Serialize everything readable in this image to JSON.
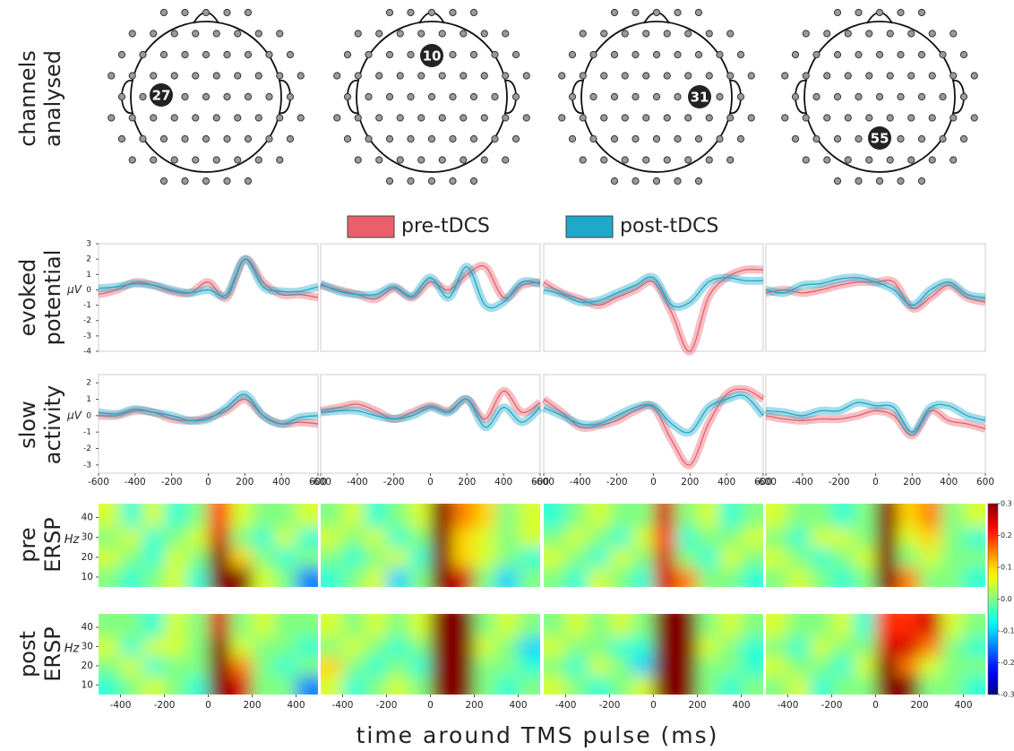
{
  "row_labels": [
    [
      "channels",
      "analysed"
    ],
    [
      "evoked",
      "potential"
    ],
    [
      "slow",
      "activity"
    ],
    [
      "pre",
      "ERSP"
    ],
    [
      "post",
      "ERSP"
    ]
  ],
  "channels": [
    "27",
    "10",
    "31",
    "55"
  ],
  "x_label": "time around TMS pulse (ms)",
  "colorbar": {
    "clim": [
      -0.3,
      0.3
    ],
    "ticks": [
      0.3,
      0.2,
      0.1,
      {
        "value": 0,
        "label": "0.0"
      },
      -0.1,
      -0.2,
      -0.3
    ]
  },
  "chart_data": [
    {
      "type": "line",
      "x": [
        -600,
        -500,
        -400,
        -300,
        -200,
        -100,
        0,
        100,
        200,
        300,
        400,
        500,
        600
      ],
      "xlim": [
        -600,
        600
      ],
      "ylim": [
        -4,
        3
      ],
      "yticks": [
        -4,
        -3,
        -2,
        -1,
        0,
        1,
        2,
        3
      ],
      "y_label": "μV",
      "series": [
        {
          "name": "pre-tDCS",
          "color": "#e95f6c",
          "values": [
            -0.3,
            0,
            0.5,
            0.3,
            -0.1,
            -0.2,
            0.5,
            -0.5,
            2,
            0.5,
            -0.3,
            -0.3,
            -0.5
          ]
        },
        {
          "name": "post-tDCS",
          "color": "#1fa8c9",
          "values": [
            0.1,
            0.2,
            0.4,
            0.3,
            0,
            -0.2,
            0,
            -0.3,
            2,
            0.2,
            -0.1,
            -0.1,
            0.2
          ]
        }
      ]
    },
    {
      "type": "line",
      "x": [
        -600,
        -500,
        -400,
        -300,
        -200,
        -100,
        0,
        100,
        200,
        300,
        400,
        500,
        600
      ],
      "xlim": [
        -600,
        600
      ],
      "ylim": [
        -4,
        3
      ],
      "series": [
        {
          "color": "#e95f6c",
          "values": [
            0.3,
            0,
            -0.3,
            -0.6,
            0.1,
            -0.5,
            0.5,
            0,
            1,
            1.5,
            -0.5,
            0.3,
            0.5
          ]
        },
        {
          "color": "#1fa8c9",
          "values": [
            0.4,
            -0.1,
            -0.3,
            -0.3,
            0.2,
            -0.4,
            0.8,
            -0.5,
            1.5,
            -1,
            -0.8,
            0.5,
            0.4
          ]
        }
      ]
    },
    {
      "type": "line",
      "x": [
        -600,
        -500,
        -400,
        -300,
        -200,
        -100,
        0,
        100,
        200,
        300,
        400,
        500,
        600
      ],
      "xlim": [
        -600,
        600
      ],
      "ylim": [
        -4,
        3
      ],
      "series": [
        {
          "color": "#e95f6c",
          "values": [
            0.5,
            -0.2,
            -0.6,
            -1,
            -0.5,
            0,
            0.5,
            -1.5,
            -4,
            -0.5,
            0.8,
            1.3,
            1.3
          ]
        },
        {
          "color": "#1fa8c9",
          "values": [
            0,
            -0.3,
            -0.8,
            -0.7,
            -0.2,
            0.3,
            0.8,
            -1,
            -0.8,
            0.5,
            0.8,
            0.6,
            0.6
          ]
        }
      ]
    },
    {
      "type": "line",
      "x": [
        -600,
        -500,
        -400,
        -300,
        -200,
        -100,
        0,
        100,
        200,
        300,
        400,
        500,
        600
      ],
      "xlim": [
        -600,
        600
      ],
      "ylim": [
        -4,
        3
      ],
      "series": [
        {
          "color": "#e95f6c",
          "values": [
            -0.2,
            0,
            -0.2,
            0,
            0.3,
            0.5,
            0.5,
            0.5,
            -1.2,
            -0.5,
            0.3,
            -0.5,
            -0.8
          ]
        },
        {
          "color": "#1fa8c9",
          "values": [
            0,
            -0.2,
            0.3,
            0.4,
            0.7,
            0.8,
            0.5,
            0,
            -1,
            0,
            0.5,
            -0.3,
            -0.5
          ]
        }
      ]
    },
    {
      "type": "line",
      "x": [
        -600,
        -500,
        -400,
        -300,
        -200,
        -100,
        0,
        100,
        200,
        300,
        400,
        500,
        600
      ],
      "xlim": [
        -600,
        600
      ],
      "ylim": [
        -3.5,
        2.5
      ],
      "yticks": [
        -3,
        -2,
        -1,
        0,
        1,
        2
      ],
      "y_label": "μV",
      "xticks": [
        -600,
        -400,
        -200,
        0,
        200,
        400,
        600
      ],
      "series": [
        {
          "color": "#e95f6c",
          "values": [
            0,
            0,
            0.3,
            0.2,
            -0.2,
            -0.3,
            -0.1,
            0.3,
            1,
            0,
            -0.5,
            -0.4,
            -0.5
          ]
        },
        {
          "color": "#1fa8c9",
          "values": [
            0.2,
            0.1,
            0.4,
            0.2,
            0,
            -0.3,
            -0.2,
            0.5,
            1.3,
            0,
            -0.5,
            -0.1,
            0
          ]
        }
      ]
    },
    {
      "type": "line",
      "x": [
        -600,
        -500,
        -400,
        -300,
        -200,
        -100,
        0,
        100,
        200,
        300,
        400,
        500,
        600
      ],
      "xlim": [
        -600,
        600
      ],
      "ylim": [
        -3.5,
        2.5
      ],
      "xticks": [
        -600,
        -400,
        -200,
        0,
        200,
        400,
        600
      ],
      "series": [
        {
          "color": "#e95f6c",
          "values": [
            0.3,
            0.5,
            0.7,
            0.3,
            -0.2,
            0.2,
            0.6,
            0.3,
            1,
            -0.2,
            1.5,
            0.2,
            0.8
          ]
        },
        {
          "color": "#1fa8c9",
          "values": [
            0.2,
            0.3,
            0.3,
            0,
            -0.2,
            0,
            0.5,
            0.2,
            1,
            -0.7,
            0.5,
            -0.4,
            0.5
          ]
        }
      ]
    },
    {
      "type": "line",
      "x": [
        -600,
        -500,
        -400,
        -300,
        -200,
        -100,
        0,
        100,
        200,
        300,
        400,
        500,
        600
      ],
      "xlim": [
        -600,
        600
      ],
      "ylim": [
        -3.5,
        2.5
      ],
      "xticks": [
        -600,
        -400,
        -200,
        0,
        200,
        400,
        600
      ],
      "series": [
        {
          "color": "#e95f6c",
          "values": [
            1,
            0.2,
            -0.7,
            -0.6,
            -0.3,
            0.3,
            0.5,
            -1.5,
            -3,
            -0.5,
            1.3,
            1.6,
            1
          ]
        },
        {
          "color": "#1fa8c9",
          "values": [
            0.5,
            0,
            -0.5,
            -0.5,
            0,
            0.5,
            0.6,
            -0.5,
            -1,
            0.5,
            1,
            1.2,
            0
          ]
        }
      ]
    },
    {
      "type": "line",
      "x": [
        -600,
        -500,
        -400,
        -300,
        -200,
        -100,
        0,
        100,
        200,
        300,
        400,
        500,
        600
      ],
      "xlim": [
        -600,
        600
      ],
      "ylim": [
        -3.5,
        2.5
      ],
      "xticks": [
        -600,
        -400,
        -200,
        0,
        200,
        400,
        600
      ],
      "series": [
        {
          "color": "#e95f6c",
          "values": [
            0,
            -0.2,
            -0.3,
            -0.2,
            -0.2,
            0,
            0.3,
            0,
            -1.2,
            0.3,
            -0.3,
            -0.5,
            -0.8
          ]
        },
        {
          "color": "#1fa8c9",
          "values": [
            0.3,
            0.2,
            0,
            0.3,
            0.3,
            0.8,
            0.6,
            0.5,
            -1,
            0.5,
            0.6,
            0,
            -0.3
          ]
        }
      ]
    },
    {
      "type": "heatmap",
      "x_bins": [
        -500,
        -400,
        -300,
        -200,
        -100,
        0,
        100,
        200,
        300,
        400,
        500
      ],
      "y_bins": [
        5,
        15,
        25,
        35,
        47
      ],
      "xlim": [
        -500,
        500
      ],
      "ylim": [
        5,
        47
      ],
      "yticks": [
        10,
        20,
        30,
        40
      ],
      "y_label": "Hz",
      "values": [
        [
          0,
          -0.05,
          0,
          0.05,
          -0.05,
          0.3,
          0.3,
          0.05,
          0,
          -0.15
        ],
        [
          0.05,
          0,
          -0.05,
          0.05,
          0,
          0.3,
          0.1,
          0,
          -0.05,
          0
        ],
        [
          0,
          0.05,
          -0.05,
          0,
          0.05,
          0.25,
          0,
          -0.05,
          0.05,
          -0.05
        ],
        [
          0.05,
          -0.05,
          0.05,
          -0.05,
          0,
          0.2,
          0.05,
          0,
          0,
          0.05
        ]
      ]
    },
    {
      "type": "heatmap",
      "x_bins": [
        -500,
        -400,
        -300,
        -200,
        -100,
        0,
        100,
        200,
        300,
        400,
        500
      ],
      "y_bins": [
        5,
        15,
        25,
        35,
        47
      ],
      "xlim": [
        -500,
        500
      ],
      "ylim": [
        5,
        47
      ],
      "values": [
        [
          -0.05,
          0,
          0.05,
          -0.1,
          0,
          0.3,
          0.25,
          0,
          -0.1,
          0
        ],
        [
          0,
          -0.05,
          0,
          0.05,
          -0.05,
          0.3,
          0.1,
          0.05,
          0,
          -0.05
        ],
        [
          0.05,
          0,
          0.05,
          -0.05,
          0,
          0.3,
          0.1,
          0.05,
          0,
          0.05
        ],
        [
          0,
          0.05,
          -0.05,
          0,
          0.05,
          0.3,
          0.15,
          0.1,
          0,
          0.05
        ]
      ]
    },
    {
      "type": "heatmap",
      "x_bins": [
        -500,
        -400,
        -300,
        -200,
        -100,
        0,
        100,
        200,
        300,
        400,
        500
      ],
      "y_bins": [
        5,
        15,
        25,
        35,
        47
      ],
      "xlim": [
        -500,
        500
      ],
      "ylim": [
        5,
        47
      ],
      "values": [
        [
          0,
          -0.05,
          0.05,
          0,
          -0.05,
          0.25,
          0.15,
          0,
          0,
          -0.05
        ],
        [
          0.05,
          0,
          -0.05,
          0.05,
          0,
          0.25,
          0,
          -0.05,
          0.05,
          0
        ],
        [
          0,
          0.05,
          0,
          -0.05,
          0.05,
          0.2,
          -0.05,
          0,
          0,
          0.05
        ],
        [
          -0.05,
          0,
          0.05,
          0,
          0,
          0.25,
          0,
          0.05,
          -0.05,
          0
        ]
      ]
    },
    {
      "type": "heatmap",
      "x_bins": [
        -500,
        -400,
        -300,
        -200,
        -100,
        0,
        100,
        200,
        300,
        400,
        500
      ],
      "y_bins": [
        5,
        15,
        25,
        35,
        47
      ],
      "xlim": [
        -500,
        500
      ],
      "ylim": [
        5,
        47
      ],
      "values": [
        [
          0,
          0.05,
          0,
          -0.05,
          0,
          0.3,
          0.15,
          0,
          0,
          -0.05
        ],
        [
          0.05,
          0,
          -0.05,
          0,
          0.05,
          0.3,
          0,
          0.05,
          0,
          0
        ],
        [
          0,
          -0.05,
          0.05,
          0.05,
          0,
          0.3,
          0.05,
          0.1,
          0,
          -0.05
        ],
        [
          0.05,
          0,
          0,
          -0.05,
          0,
          0.3,
          0.1,
          0.15,
          0,
          0.05
        ]
      ]
    },
    {
      "type": "heatmap",
      "x_bins": [
        -500,
        -400,
        -300,
        -200,
        -100,
        0,
        100,
        200,
        300,
        400,
        500
      ],
      "y_bins": [
        5,
        15,
        25,
        35,
        47
      ],
      "xlim": [
        -500,
        500
      ],
      "ylim": [
        5,
        47
      ],
      "yticks": [
        10,
        20,
        30,
        40
      ],
      "y_label": "Hz",
      "xticks": [
        -400,
        -200,
        0,
        200,
        400
      ],
      "values": [
        [
          -0.05,
          0,
          0.05,
          0,
          -0.05,
          0.3,
          0.25,
          0,
          0,
          -0.15
        ],
        [
          0,
          0.05,
          -0.05,
          0,
          0,
          0.3,
          0.15,
          0,
          -0.05,
          0
        ],
        [
          0.05,
          -0.05,
          0.05,
          0.05,
          0,
          0.3,
          0.05,
          0,
          0,
          -0.05
        ],
        [
          0,
          0,
          -0.05,
          0.05,
          0,
          0.25,
          0,
          0.05,
          0,
          0
        ]
      ]
    },
    {
      "type": "heatmap",
      "x_bins": [
        -500,
        -400,
        -300,
        -200,
        -100,
        0,
        100,
        200,
        300,
        400,
        500
      ],
      "y_bins": [
        5,
        15,
        25,
        35,
        47
      ],
      "xlim": [
        -500,
        500
      ],
      "ylim": [
        5,
        47
      ],
      "xticks": [
        -400,
        -200,
        0,
        200,
        400
      ],
      "values": [
        [
          0.05,
          -0.05,
          0,
          0.05,
          0,
          0.3,
          0.3,
          0,
          -0.05,
          0
        ],
        [
          0.1,
          0,
          -0.05,
          0,
          -0.05,
          0.3,
          0.3,
          0,
          0,
          -0.05
        ],
        [
          0,
          0.05,
          0,
          -0.05,
          0,
          0.3,
          0.3,
          0.05,
          0,
          -0.1
        ],
        [
          0.05,
          0,
          0.05,
          0,
          0.05,
          0.3,
          0.3,
          0,
          0.05,
          0
        ]
      ]
    },
    {
      "type": "heatmap",
      "x_bins": [
        -500,
        -400,
        -300,
        -200,
        -100,
        0,
        100,
        200,
        300,
        400,
        500
      ],
      "y_bins": [
        5,
        15,
        25,
        35,
        47
      ],
      "xlim": [
        -500,
        500
      ],
      "ylim": [
        5,
        47
      ],
      "xticks": [
        -400,
        -200,
        0,
        200,
        400
      ],
      "values": [
        [
          0.05,
          0,
          -0.05,
          0,
          0.05,
          0.3,
          0.3,
          0,
          -0.05,
          0
        ],
        [
          0,
          -0.05,
          0.05,
          0,
          -0.1,
          0.3,
          0.3,
          0,
          0,
          -0.05
        ],
        [
          0.05,
          0,
          0,
          -0.05,
          -0.05,
          0.3,
          0.3,
          0.05,
          0,
          -0.05
        ],
        [
          0,
          0.05,
          0,
          0.05,
          0,
          0.3,
          0.3,
          0,
          0.05,
          0
        ]
      ]
    },
    {
      "type": "heatmap",
      "x_bins": [
        -500,
        -400,
        -300,
        -200,
        -100,
        0,
        100,
        200,
        300,
        400,
        500
      ],
      "y_bins": [
        5,
        15,
        25,
        35,
        47
      ],
      "xlim": [
        -500,
        500
      ],
      "ylim": [
        5,
        47
      ],
      "xticks": [
        -400,
        -200,
        0,
        200,
        400
      ],
      "values": [
        [
          0,
          0.05,
          -0.05,
          0,
          0,
          0.3,
          0.3,
          0,
          0,
          -0.05
        ],
        [
          0.05,
          0,
          0,
          -0.05,
          0.05,
          0.3,
          0.15,
          0.05,
          0,
          0
        ],
        [
          0,
          -0.05,
          0.05,
          0,
          0,
          0.25,
          0.25,
          0.15,
          0,
          -0.05
        ],
        [
          0.05,
          0,
          0,
          0.05,
          -0.05,
          0.2,
          0.2,
          0.25,
          0.05,
          0
        ]
      ]
    }
  ]
}
